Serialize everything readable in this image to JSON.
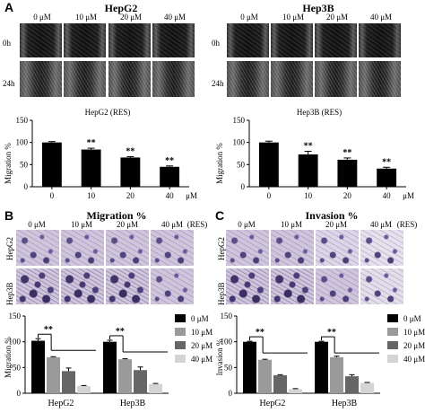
{
  "panels": {
    "A": "A",
    "B": "B",
    "C": "C"
  },
  "panel_a": {
    "left_title": "HepG2",
    "right_title": "Hep3B",
    "concentrations": [
      "0 μM",
      "10 μM",
      "20 μM",
      "40 μM"
    ],
    "row_labels": [
      "0h",
      "24h"
    ]
  },
  "panel_b": {
    "title": "Migration %",
    "concentrations": [
      "0 μM",
      "10 μM",
      "20 μM",
      "40 μM"
    ],
    "res_note": "(RES)",
    "row_labels": [
      "HepG2",
      "Hep3B"
    ]
  },
  "panel_c": {
    "title": "Invasion %",
    "concentrations": [
      "0 μM",
      "10 μM",
      "20 μM",
      "40 μM"
    ],
    "res_note": "(RES)",
    "row_labels": [
      "HepG2",
      "Hep3B"
    ]
  },
  "chart_data": [
    {
      "type": "bar",
      "title": "HepG2 (RES)",
      "ylabel": "Migration %",
      "categories": [
        "0",
        "10",
        "20",
        "40"
      ],
      "x_unit": "μM",
      "values": [
        100,
        84,
        66,
        45
      ],
      "errors": [
        2,
        3,
        2,
        2
      ],
      "significance": [
        "",
        "**",
        "**",
        "**"
      ],
      "ylim": [
        0,
        150
      ],
      "yticks": [
        0,
        50,
        100,
        150
      ],
      "color": "#000000"
    },
    {
      "type": "bar",
      "title": "Hep3B (RES)",
      "ylabel": "Migration %",
      "categories": [
        "0",
        "10",
        "20",
        "40"
      ],
      "x_unit": "μM",
      "values": [
        100,
        73,
        61,
        41
      ],
      "errors": [
        3,
        7,
        4,
        3
      ],
      "significance": [
        "",
        "**",
        "**",
        "**"
      ],
      "ylim": [
        0,
        150
      ],
      "yticks": [
        0,
        50,
        100,
        150
      ],
      "color": "#000000"
    },
    {
      "type": "bar",
      "ylabel": "Migration %",
      "categories": [
        "HepG2",
        "Hep3B"
      ],
      "ylim": [
        0,
        150
      ],
      "yticks": [
        0,
        50,
        100,
        150
      ],
      "series": [
        {
          "name": "0 μM",
          "values": [
            102,
            100
          ],
          "errors": [
            4,
            3
          ],
          "color": "#000000"
        },
        {
          "name": "10 μM",
          "values": [
            70,
            66
          ],
          "errors": [
            1,
            1
          ],
          "color": "#9a9a9a"
        },
        {
          "name": "20 μM",
          "values": [
            43,
            45
          ],
          "errors": [
            6,
            6
          ],
          "color": "#666666"
        },
        {
          "name": "40 μM",
          "values": [
            14,
            18
          ],
          "errors": [
            1,
            1
          ],
          "color": "#d4d4d4"
        }
      ],
      "significance": [
        "**",
        "**"
      ],
      "legend": "right"
    },
    {
      "type": "bar",
      "ylabel": "Invasion %",
      "categories": [
        "HepG2",
        "Hep3B"
      ],
      "ylim": [
        0,
        150
      ],
      "yticks": [
        0,
        50,
        100,
        150
      ],
      "series": [
        {
          "name": "0 μM",
          "values": [
            100,
            100
          ],
          "errors": [
            1,
            1
          ],
          "color": "#000000"
        },
        {
          "name": "10 μM",
          "values": [
            65,
            70
          ],
          "errors": [
            1,
            2
          ],
          "color": "#9a9a9a"
        },
        {
          "name": "20 μM",
          "values": [
            35,
            33
          ],
          "errors": [
            1,
            3
          ],
          "color": "#666666"
        },
        {
          "name": "40 μM",
          "values": [
            8,
            20
          ],
          "errors": [
            1,
            1
          ],
          "color": "#d4d4d4"
        }
      ],
      "significance": [
        "**",
        "**"
      ],
      "legend": "right"
    }
  ]
}
